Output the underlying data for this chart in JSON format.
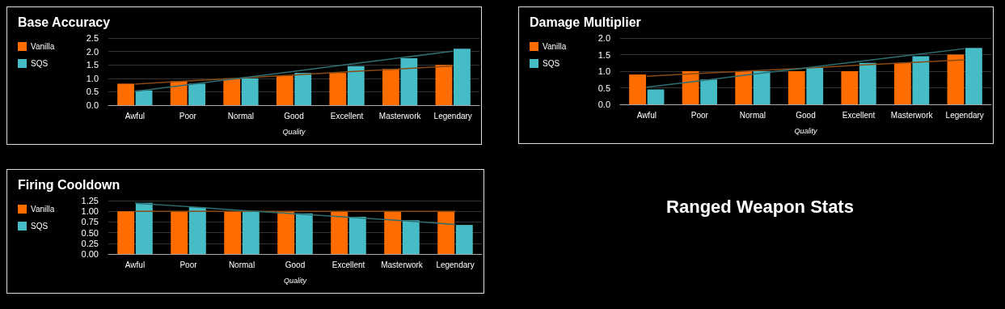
{
  "chart_data": [
    {
      "type": "bar",
      "title": "Base Accuracy",
      "xlabel": "Quality",
      "categories": [
        "Awful",
        "Poor",
        "Normal",
        "Good",
        "Excellent",
        "Masterwork",
        "Legendary"
      ],
      "series": [
        {
          "name": "Vanilla",
          "color": "#ff6d01",
          "values": [
            0.8,
            0.9,
            1.0,
            1.1,
            1.2,
            1.35,
            1.5
          ]
        },
        {
          "name": "SQS",
          "color": "#46bdc6",
          "values": [
            0.55,
            0.8,
            1.0,
            1.2,
            1.45,
            1.75,
            2.1
          ]
        },
        {
          "type": "line",
          "color": "#8a4a14",
          "values": [
            0.78,
            0.9,
            1.01,
            1.12,
            1.24,
            1.35,
            1.46
          ]
        },
        {
          "type": "line",
          "color": "#2e6d72",
          "values": [
            0.51,
            0.76,
            1.01,
            1.26,
            1.51,
            1.76,
            2.01
          ]
        }
      ],
      "ylim": [
        0,
        2.5
      ],
      "yticks": [
        {
          "value": 0,
          "label": "0.0"
        },
        {
          "value": 0.5,
          "label": "0.5"
        },
        {
          "value": 1,
          "label": "1.0"
        },
        {
          "value": 1.5,
          "label": "1.5"
        },
        {
          "value": 2,
          "label": "2.0"
        },
        {
          "value": 2.5,
          "label": "2.5"
        }
      ],
      "grid": "y",
      "legend": "top left"
    },
    {
      "type": "bar",
      "title": "Damage Multiplier",
      "xlabel": "Quality",
      "categories": [
        "Awful",
        "Poor",
        "Normal",
        "Good",
        "Excellent",
        "Masterwork",
        "Legendary"
      ],
      "series": [
        {
          "name": "Vanilla",
          "color": "#ff6d01",
          "values": [
            0.9,
            1.0,
            1.0,
            1.0,
            1.0,
            1.25,
            1.5
          ]
        },
        {
          "name": "SQS",
          "color": "#46bdc6",
          "values": [
            0.45,
            0.75,
            1.0,
            1.1,
            1.25,
            1.45,
            1.7
          ]
        },
        {
          "type": "line",
          "color": "#8a4a14",
          "values": [
            0.85,
            0.93,
            1.01,
            1.09,
            1.18,
            1.26,
            1.34
          ]
        },
        {
          "type": "line",
          "color": "#2e6d72",
          "values": [
            0.52,
            0.71,
            0.91,
            1.1,
            1.29,
            1.49,
            1.68
          ]
        }
      ],
      "ylim": [
        0,
        2
      ],
      "yticks": [
        {
          "value": 0,
          "label": "0.0"
        },
        {
          "value": 0.5,
          "label": "0.5"
        },
        {
          "value": 1,
          "label": "1.0"
        },
        {
          "value": 1.5,
          "label": "1.5"
        },
        {
          "value": 2,
          "label": "2.0"
        }
      ],
      "grid": "y",
      "legend": "top left"
    },
    {
      "type": "bar",
      "title": "Firing Cooldown",
      "xlabel": "Quality",
      "categories": [
        "Awful",
        "Poor",
        "Normal",
        "Good",
        "Excellent",
        "Masterwork",
        "Legendary"
      ],
      "series": [
        {
          "name": "Vanilla",
          "color": "#ff6d01",
          "values": [
            1,
            1,
            1,
            1,
            1,
            1,
            1
          ]
        },
        {
          "name": "SQS",
          "color": "#46bdc6",
          "values": [
            1.2,
            1.1,
            1.0,
            0.95,
            0.87,
            0.79,
            0.68
          ]
        },
        {
          "type": "line",
          "color": "#8a4a14",
          "values": [
            1,
            1,
            1,
            1,
            1,
            1,
            1
          ]
        },
        {
          "type": "line",
          "color": "#2e6d72",
          "values": [
            1.19,
            1.11,
            1.02,
            0.94,
            0.86,
            0.78,
            0.69
          ]
        }
      ],
      "ylim": [
        0,
        1.25
      ],
      "yticks": [
        {
          "value": 0,
          "label": "0.00"
        },
        {
          "value": 0.25,
          "label": "0.25"
        },
        {
          "value": 0.5,
          "label": "0.50"
        },
        {
          "value": 0.75,
          "label": "0.75"
        },
        {
          "value": 1,
          "label": "1.00"
        },
        {
          "value": 1.25,
          "label": "1.25"
        }
      ],
      "grid": "y",
      "legend": "top left"
    },
    {
      "type": "other",
      "title": "Ranged Weapon Stats"
    }
  ]
}
